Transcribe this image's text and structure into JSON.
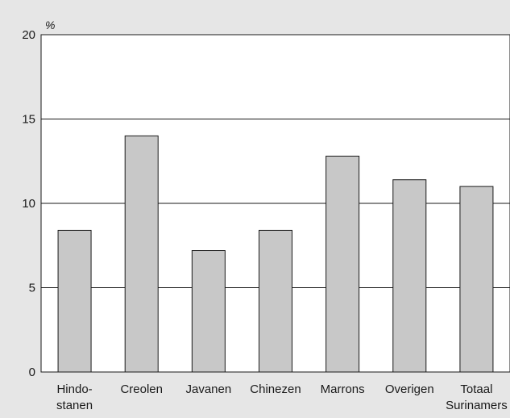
{
  "chart_data": {
    "type": "bar",
    "title": "",
    "xlabel": "",
    "ylabel": "%",
    "ylim": [
      0,
      20
    ],
    "yticks": [
      0,
      5,
      10,
      15,
      20
    ],
    "grid": true,
    "categories": [
      [
        "Hindo-",
        "stanen"
      ],
      [
        "Creolen"
      ],
      [
        "Javanen"
      ],
      [
        "Chinezen"
      ],
      [
        "Marrons"
      ],
      [
        "Overigen"
      ],
      [
        "Totaal",
        "Surinamers"
      ]
    ],
    "values": [
      8.4,
      14.0,
      7.2,
      8.4,
      12.8,
      11.4,
      11.0
    ],
    "colors": {
      "background": "#e6e6e6",
      "plot": "#ffffff",
      "bar": "#c8c8c8",
      "line": "#1a1a1a"
    }
  }
}
